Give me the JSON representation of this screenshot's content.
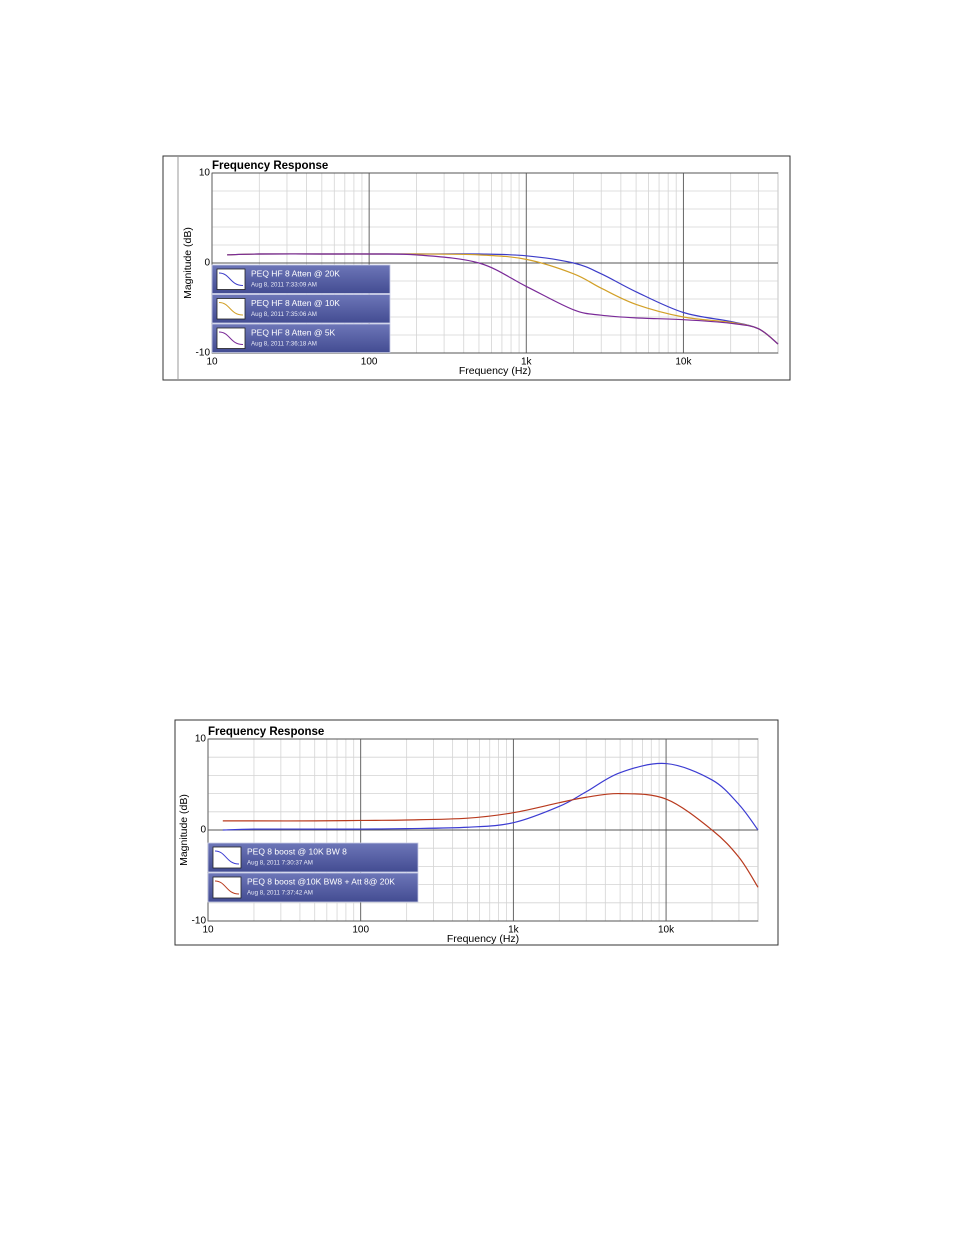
{
  "chart_data": [
    {
      "type": "line",
      "title": "Frequency Response",
      "x_label": "Frequency (Hz)",
      "y_label": "Magnitude (dB)",
      "log_x": true,
      "grid": true,
      "xlim": [
        10,
        40000
      ],
      "ylim": [
        -10,
        10
      ],
      "xticks": [
        10,
        100,
        {
          "value": 1000,
          "label": "1k"
        },
        {
          "value": 10000,
          "label": "10k"
        }
      ],
      "yticks": [
        -10,
        0,
        10
      ],
      "x_minor_ticks": [
        20,
        30,
        40,
        50,
        60,
        70,
        80,
        90,
        200,
        300,
        400,
        500,
        600,
        700,
        800,
        900,
        2000,
        3000,
        4000,
        5000,
        6000,
        7000,
        8000,
        9000,
        20000,
        30000,
        40000
      ],
      "y_minor_ticks": [
        -8,
        -6,
        -4,
        -2,
        2,
        4,
        6,
        8
      ],
      "x": [
        12.5,
        20,
        50,
        100,
        200,
        500,
        1000,
        2000,
        3000,
        5000,
        10000,
        20000,
        30000,
        40000
      ],
      "series": [
        {
          "name": "PEQ HF 8 Atten @ 20K",
          "date": "Aug 8, 2011 7:33:09 AM",
          "color": "#3c3cc8",
          "values": [
            0.9,
            1,
            1,
            1,
            1,
            1,
            0.8,
            0,
            -1.2,
            -3.2,
            -5.5,
            -6.5,
            -7.3,
            -9
          ]
        },
        {
          "name": "PEQ HF 8 Atten @ 10K",
          "date": "Aug 8, 2011 7:35:06 AM",
          "color": "#d2a028",
          "values": [
            0.9,
            1,
            1,
            1,
            1,
            0.9,
            0.4,
            -1.2,
            -2.8,
            -4.6,
            -6,
            -6.6,
            -7.3,
            -9
          ]
        },
        {
          "name": "PEQ HF 8 Atten @ 5K",
          "date": "Aug 8, 2011 7:36:18 AM",
          "color": "#7a2a98",
          "values": [
            0.9,
            1,
            1,
            1,
            0.9,
            0,
            -2.6,
            -5.2,
            -5.8,
            -6.1,
            -6.3,
            -6.7,
            -7.3,
            -9
          ]
        }
      ]
    },
    {
      "type": "line",
      "title": "Frequency Response",
      "x_label": "Frequency (Hz)",
      "y_label": "Magnitude (dB)",
      "log_x": true,
      "grid": true,
      "xlim": [
        10,
        40000
      ],
      "ylim": [
        -10,
        10
      ],
      "xticks": [
        10,
        100,
        {
          "value": 1000,
          "label": "1k"
        },
        {
          "value": 10000,
          "label": "10k"
        }
      ],
      "yticks": [
        -10,
        0,
        10
      ],
      "x_minor_ticks": [
        20,
        30,
        40,
        50,
        60,
        70,
        80,
        90,
        200,
        300,
        400,
        500,
        600,
        700,
        800,
        900,
        2000,
        3000,
        4000,
        5000,
        6000,
        7000,
        8000,
        9000,
        20000,
        30000,
        40000
      ],
      "y_minor_ticks": [
        -8,
        -6,
        -4,
        -2,
        2,
        4,
        6,
        8
      ],
      "x": [
        12.5,
        20,
        50,
        100,
        200,
        500,
        1000,
        2000,
        3000,
        5000,
        10000,
        20000,
        30000,
        40000
      ],
      "series": [
        {
          "name": "PEQ 8 boost @ 10K BW 8",
          "date": "Aug 8, 2011 7:30:37 AM",
          "color": "#3c3cd2",
          "values": [
            0,
            0.1,
            0.1,
            0.1,
            0.15,
            0.3,
            0.8,
            2.6,
            4.2,
            6.3,
            7.3,
            5.5,
            2.8,
            0
          ]
        },
        {
          "name": "PEQ 8 boost @10K BW8 + Att 8@ 20K",
          "date": "Aug 8, 2011 7:37:42 AM",
          "color": "#b83a1e",
          "values": [
            1,
            1,
            1,
            1.05,
            1.1,
            1.3,
            1.9,
            3.0,
            3.6,
            4.0,
            3.4,
            0,
            -3,
            -6.3
          ]
        }
      ]
    }
  ]
}
